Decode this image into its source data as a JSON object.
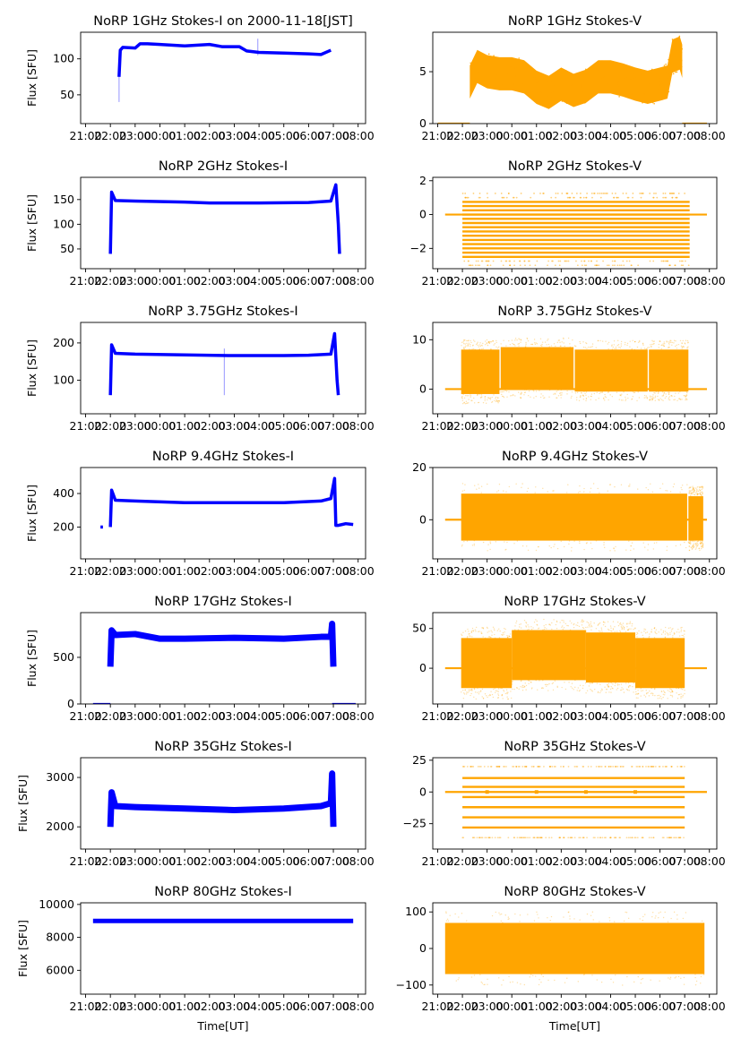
{
  "figure": {
    "xlabel": "Time[UT]",
    "ylabel": "Flux [SFU]",
    "x_tick_labels": [
      "21:00",
      "22:00",
      "23:00",
      "00:00",
      "01:00",
      "02:00",
      "03:00",
      "04:00",
      "05:00",
      "06:00",
      "07:00",
      "08:00"
    ]
  },
  "chart_data": [
    {
      "type": "scatter",
      "title": "NoRP 1GHz Stokes-I on 2000-11-18[JST]",
      "color": "#0000ff",
      "xlabel": "",
      "ylabel": "Flux [SFU]",
      "ylim": [
        10,
        137
      ],
      "yticks": [
        50,
        100
      ],
      "xlim_hours_from_2100": [
        -0.2,
        11.3
      ],
      "segments": [
        {
          "x": [
            1.35,
            1.4,
            1.5,
            2.0,
            2.2,
            2.5,
            3.0,
            4.0,
            5.0,
            5.5,
            6.2,
            6.5,
            7.0,
            8.0,
            9.0,
            9.5,
            9.9
          ],
          "y": [
            75,
            112,
            116,
            115,
            121,
            121,
            120,
            118,
            120,
            117,
            117,
            111,
            109,
            108,
            107,
            106,
            112
          ]
        }
      ],
      "spikes": [
        {
          "x": 1.35,
          "y_min": 40,
          "y_max": 75
        },
        {
          "x": 6.95,
          "y_min": 105,
          "y_max": 128
        }
      ]
    },
    {
      "type": "scatter",
      "title": "NoRP 1GHz Stokes-V",
      "color": "#ffa500",
      "xlabel": "",
      "ylabel": "",
      "ylim": [
        0,
        8.8
      ],
      "yticks": [
        0,
        5
      ],
      "xlim_hours_from_2100": [
        -0.2,
        11.3
      ],
      "segments": [
        {
          "x": [
            1.3,
            1.6,
            2.0,
            2.5,
            3.0,
            3.5,
            4.0,
            4.5,
            5.0,
            5.5,
            6.0,
            6.5,
            7.0,
            7.5,
            8.0,
            8.5,
            9.0,
            9.3,
            9.5,
            9.8,
            9.9
          ],
          "y": [
            4.0,
            5.5,
            5.0,
            4.8,
            4.8,
            4.5,
            3.5,
            3.0,
            3.8,
            3.2,
            3.6,
            4.5,
            4.5,
            4.2,
            3.8,
            3.5,
            3.8,
            4.0,
            6.5,
            6.8,
            6.0
          ],
          "spread": 1.6
        }
      ],
      "baselines": [
        {
          "x_start": 0.0,
          "x_end": 1.3,
          "y": 0
        },
        {
          "x_start": 9.9,
          "x_end": 10.9,
          "y": 0
        }
      ]
    },
    {
      "type": "scatter",
      "title": "NoRP 2GHz Stokes-I",
      "color": "#0000ff",
      "xlabel": "",
      "ylabel": "Flux [SFU]",
      "ylim": [
        10,
        195
      ],
      "yticks": [
        50,
        100,
        150
      ],
      "xlim_hours_from_2100": [
        -0.2,
        11.3
      ],
      "segments": [
        {
          "x": [
            1.0,
            1.05,
            1.2,
            2.0,
            4.0,
            5.0,
            7.0,
            9.0,
            9.9,
            10.1,
            10.2,
            10.25
          ],
          "y": [
            40,
            165,
            148,
            147,
            145,
            143,
            143,
            144,
            147,
            180,
            100,
            40
          ]
        }
      ],
      "spikes": []
    },
    {
      "type": "scatter",
      "title": "NoRP 2GHz Stokes-V",
      "color": "#ffa500",
      "xlabel": "",
      "ylabel": "",
      "ylim": [
        -3.2,
        2.2
      ],
      "yticks": [
        -2,
        0,
        2
      ],
      "xlim_hours_from_2100": [
        -0.2,
        11.3
      ],
      "levels": [
        0.75,
        0.5,
        0.25,
        0,
        -0.25,
        -0.5,
        -0.75,
        -1.0,
        -1.25,
        -1.5,
        -1.75,
        -2.0,
        -2.25,
        -2.5
      ],
      "active_range": [
        1.0,
        10.2
      ],
      "baselines": [
        {
          "x_start": 0.3,
          "x_end": 10.9,
          "y": 0
        }
      ]
    },
    {
      "type": "scatter",
      "title": "NoRP 3.75GHz Stokes-I",
      "color": "#0000ff",
      "xlabel": "",
      "ylabel": "Flux [SFU]",
      "ylim": [
        10,
        255
      ],
      "yticks": [
        100,
        200
      ],
      "xlim_hours_from_2100": [
        -0.2,
        11.3
      ],
      "segments": [
        {
          "x": [
            1.0,
            1.05,
            1.2,
            2.0,
            4.0,
            6.0,
            8.0,
            9.0,
            9.9,
            10.05,
            10.15,
            10.2
          ],
          "y": [
            60,
            195,
            172,
            170,
            168,
            166,
            166,
            167,
            170,
            225,
            100,
            60
          ]
        }
      ],
      "spikes": [
        {
          "x": 5.6,
          "y_min": 60,
          "y_max": 185
        }
      ]
    },
    {
      "type": "scatter",
      "title": "NoRP 3.75GHz Stokes-V",
      "color": "#ffa500",
      "xlabel": "",
      "ylabel": "",
      "ylim": [
        -5,
        13.5
      ],
      "yticks": [
        0,
        10
      ],
      "xlim_hours_from_2100": [
        -0.2,
        11.3
      ],
      "blocks": [
        {
          "x_start": 0.95,
          "x_end": 2.5,
          "y_min": -1,
          "y_max": 8
        },
        {
          "x_start": 2.55,
          "x_end": 5.5,
          "y_min": 0,
          "y_max": 8.5
        },
        {
          "x_start": 5.55,
          "x_end": 8.5,
          "y_min": -0.5,
          "y_max": 8
        },
        {
          "x_start": 8.55,
          "x_end": 10.15,
          "y_min": -0.5,
          "y_max": 8
        }
      ],
      "baselines": [
        {
          "x_start": 0.3,
          "x_end": 10.9,
          "y": 0
        }
      ]
    },
    {
      "type": "scatter",
      "title": "NoRP 9.4GHz Stokes-I",
      "color": "#0000ff",
      "xlabel": "",
      "ylabel": "Flux [SFU]",
      "ylim": [
        10,
        555
      ],
      "yticks": [
        200,
        400
      ],
      "xlim_hours_from_2100": [
        -0.2,
        11.3
      ],
      "segments": [
        {
          "x": [
            0.6,
            0.7
          ],
          "y": [
            200,
            200
          ]
        },
        {
          "x": [
            1.0,
            1.05,
            1.2,
            2.0,
            4.0,
            6.0,
            8.0,
            9.5,
            9.9,
            10.05,
            10.1,
            10.2,
            10.5,
            10.8
          ],
          "y": [
            200,
            420,
            360,
            355,
            345,
            345,
            345,
            355,
            370,
            490,
            210,
            210,
            220,
            215
          ]
        }
      ],
      "spikes": []
    },
    {
      "type": "scatter",
      "title": "NoRP 9.4GHz Stokes-V",
      "color": "#ffa500",
      "xlabel": "",
      "ylabel": "",
      "ylim": [
        -15,
        20
      ],
      "yticks": [
        0,
        20
      ],
      "xlim_hours_from_2100": [
        -0.2,
        11.3
      ],
      "blocks": [
        {
          "x_start": 0.95,
          "x_end": 10.1,
          "y_min": -8,
          "y_max": 10
        },
        {
          "x_start": 10.15,
          "x_end": 10.75,
          "y_min": -8,
          "y_max": 9
        }
      ],
      "baselines": [
        {
          "x_start": 0.3,
          "x_end": 10.9,
          "y": 0
        }
      ]
    },
    {
      "type": "scatter",
      "title": "NoRP 17GHz Stokes-I",
      "color": "#0000ff",
      "xlabel": "",
      "ylabel": "Flux [SFU]",
      "ylim": [
        0,
        980
      ],
      "yticks": [
        0,
        500
      ],
      "xlim_hours_from_2100": [
        -0.2,
        11.3
      ],
      "segments": [
        {
          "x": [
            1.0,
            1.05,
            1.2,
            2.0,
            3.0,
            4.0,
            6.0,
            8.0,
            9.5,
            9.9,
            9.95,
            10.0
          ],
          "y": [
            400,
            790,
            740,
            750,
            700,
            700,
            710,
            700,
            720,
            720,
            860,
            400
          ]
        }
      ],
      "baselines": [
        {
          "x_start": 0.3,
          "x_end": 1.0,
          "y": 0
        },
        {
          "x_start": 9.95,
          "x_end": 10.9,
          "y": 0
        }
      ],
      "spikes": []
    },
    {
      "type": "scatter",
      "title": "NoRP 17GHz Stokes-V",
      "color": "#ffa500",
      "xlabel": "",
      "ylabel": "",
      "ylim": [
        -45,
        70
      ],
      "yticks": [
        0,
        50
      ],
      "xlim_hours_from_2100": [
        -0.2,
        11.3
      ],
      "blocks": [
        {
          "x_start": 0.95,
          "x_end": 3.0,
          "y_min": -25,
          "y_max": 38
        },
        {
          "x_start": 3.0,
          "x_end": 6.0,
          "y_min": -15,
          "y_max": 48
        },
        {
          "x_start": 6.0,
          "x_end": 8.0,
          "y_min": -18,
          "y_max": 45
        },
        {
          "x_start": 8.0,
          "x_end": 10.0,
          "y_min": -25,
          "y_max": 38
        }
      ],
      "baselines": [
        {
          "x_start": 0.3,
          "x_end": 10.9,
          "y": 0
        }
      ]
    },
    {
      "type": "scatter",
      "title": "NoRP 35GHz Stokes-I",
      "color": "#0000ff",
      "xlabel": "",
      "ylabel": "Flux [SFU]",
      "ylim": [
        1550,
        3400
      ],
      "yticks": [
        2000,
        3000
      ],
      "xlim_hours_from_2100": [
        -0.2,
        11.3
      ],
      "segments": [
        {
          "x": [
            1.0,
            1.05,
            1.2,
            2.0,
            4.0,
            6.0,
            8.0,
            9.5,
            9.9,
            9.95,
            10.0
          ],
          "y": [
            2000,
            2700,
            2420,
            2400,
            2370,
            2340,
            2370,
            2420,
            2480,
            3080,
            2000
          ]
        }
      ],
      "spikes": []
    },
    {
      "type": "scatter",
      "title": "NoRP 35GHz Stokes-V",
      "color": "#ffa500",
      "xlabel": "",
      "ylabel": "",
      "ylim": [
        -45,
        27
      ],
      "yticks": [
        -25,
        0,
        25
      ],
      "xlim_hours_from_2100": [
        -0.2,
        11.3
      ],
      "levels": [
        11,
        4,
        -4,
        -12,
        -20,
        -28
      ],
      "faint_levels": [
        20,
        -36
      ],
      "active_range": [
        1.0,
        10.0
      ],
      "baselines": [
        {
          "x_start": 0.3,
          "x_end": 10.9,
          "y": 0
        }
      ],
      "dots": [
        {
          "x": 2.0,
          "y": 0
        },
        {
          "x": 4.0,
          "y": 0
        },
        {
          "x": 6.0,
          "y": 0
        },
        {
          "x": 8.0,
          "y": 0
        }
      ]
    },
    {
      "type": "scatter",
      "title": "NoRP 80GHz Stokes-I",
      "color": "#0000ff",
      "xlabel": "Time[UT]",
      "ylabel": "Flux [SFU]",
      "ylim": [
        4550,
        10100
      ],
      "yticks": [
        6000,
        8000,
        10000
      ],
      "xlim_hours_from_2100": [
        -0.2,
        11.3
      ],
      "segments": [
        {
          "x": [
            0.3,
            10.8
          ],
          "y": [
            9000,
            9000
          ]
        }
      ],
      "spikes": []
    },
    {
      "type": "scatter",
      "title": "NoRP 80GHz Stokes-V",
      "color": "#ffa500",
      "xlabel": "Time[UT]",
      "ylabel": "",
      "ylim": [
        -125,
        125
      ],
      "yticks": [
        -100,
        0,
        100
      ],
      "xlim_hours_from_2100": [
        -0.2,
        11.3
      ],
      "blocks": [
        {
          "x_start": 0.3,
          "x_end": 10.8,
          "y_min": -70,
          "y_max": 70
        }
      ],
      "baselines": []
    }
  ]
}
